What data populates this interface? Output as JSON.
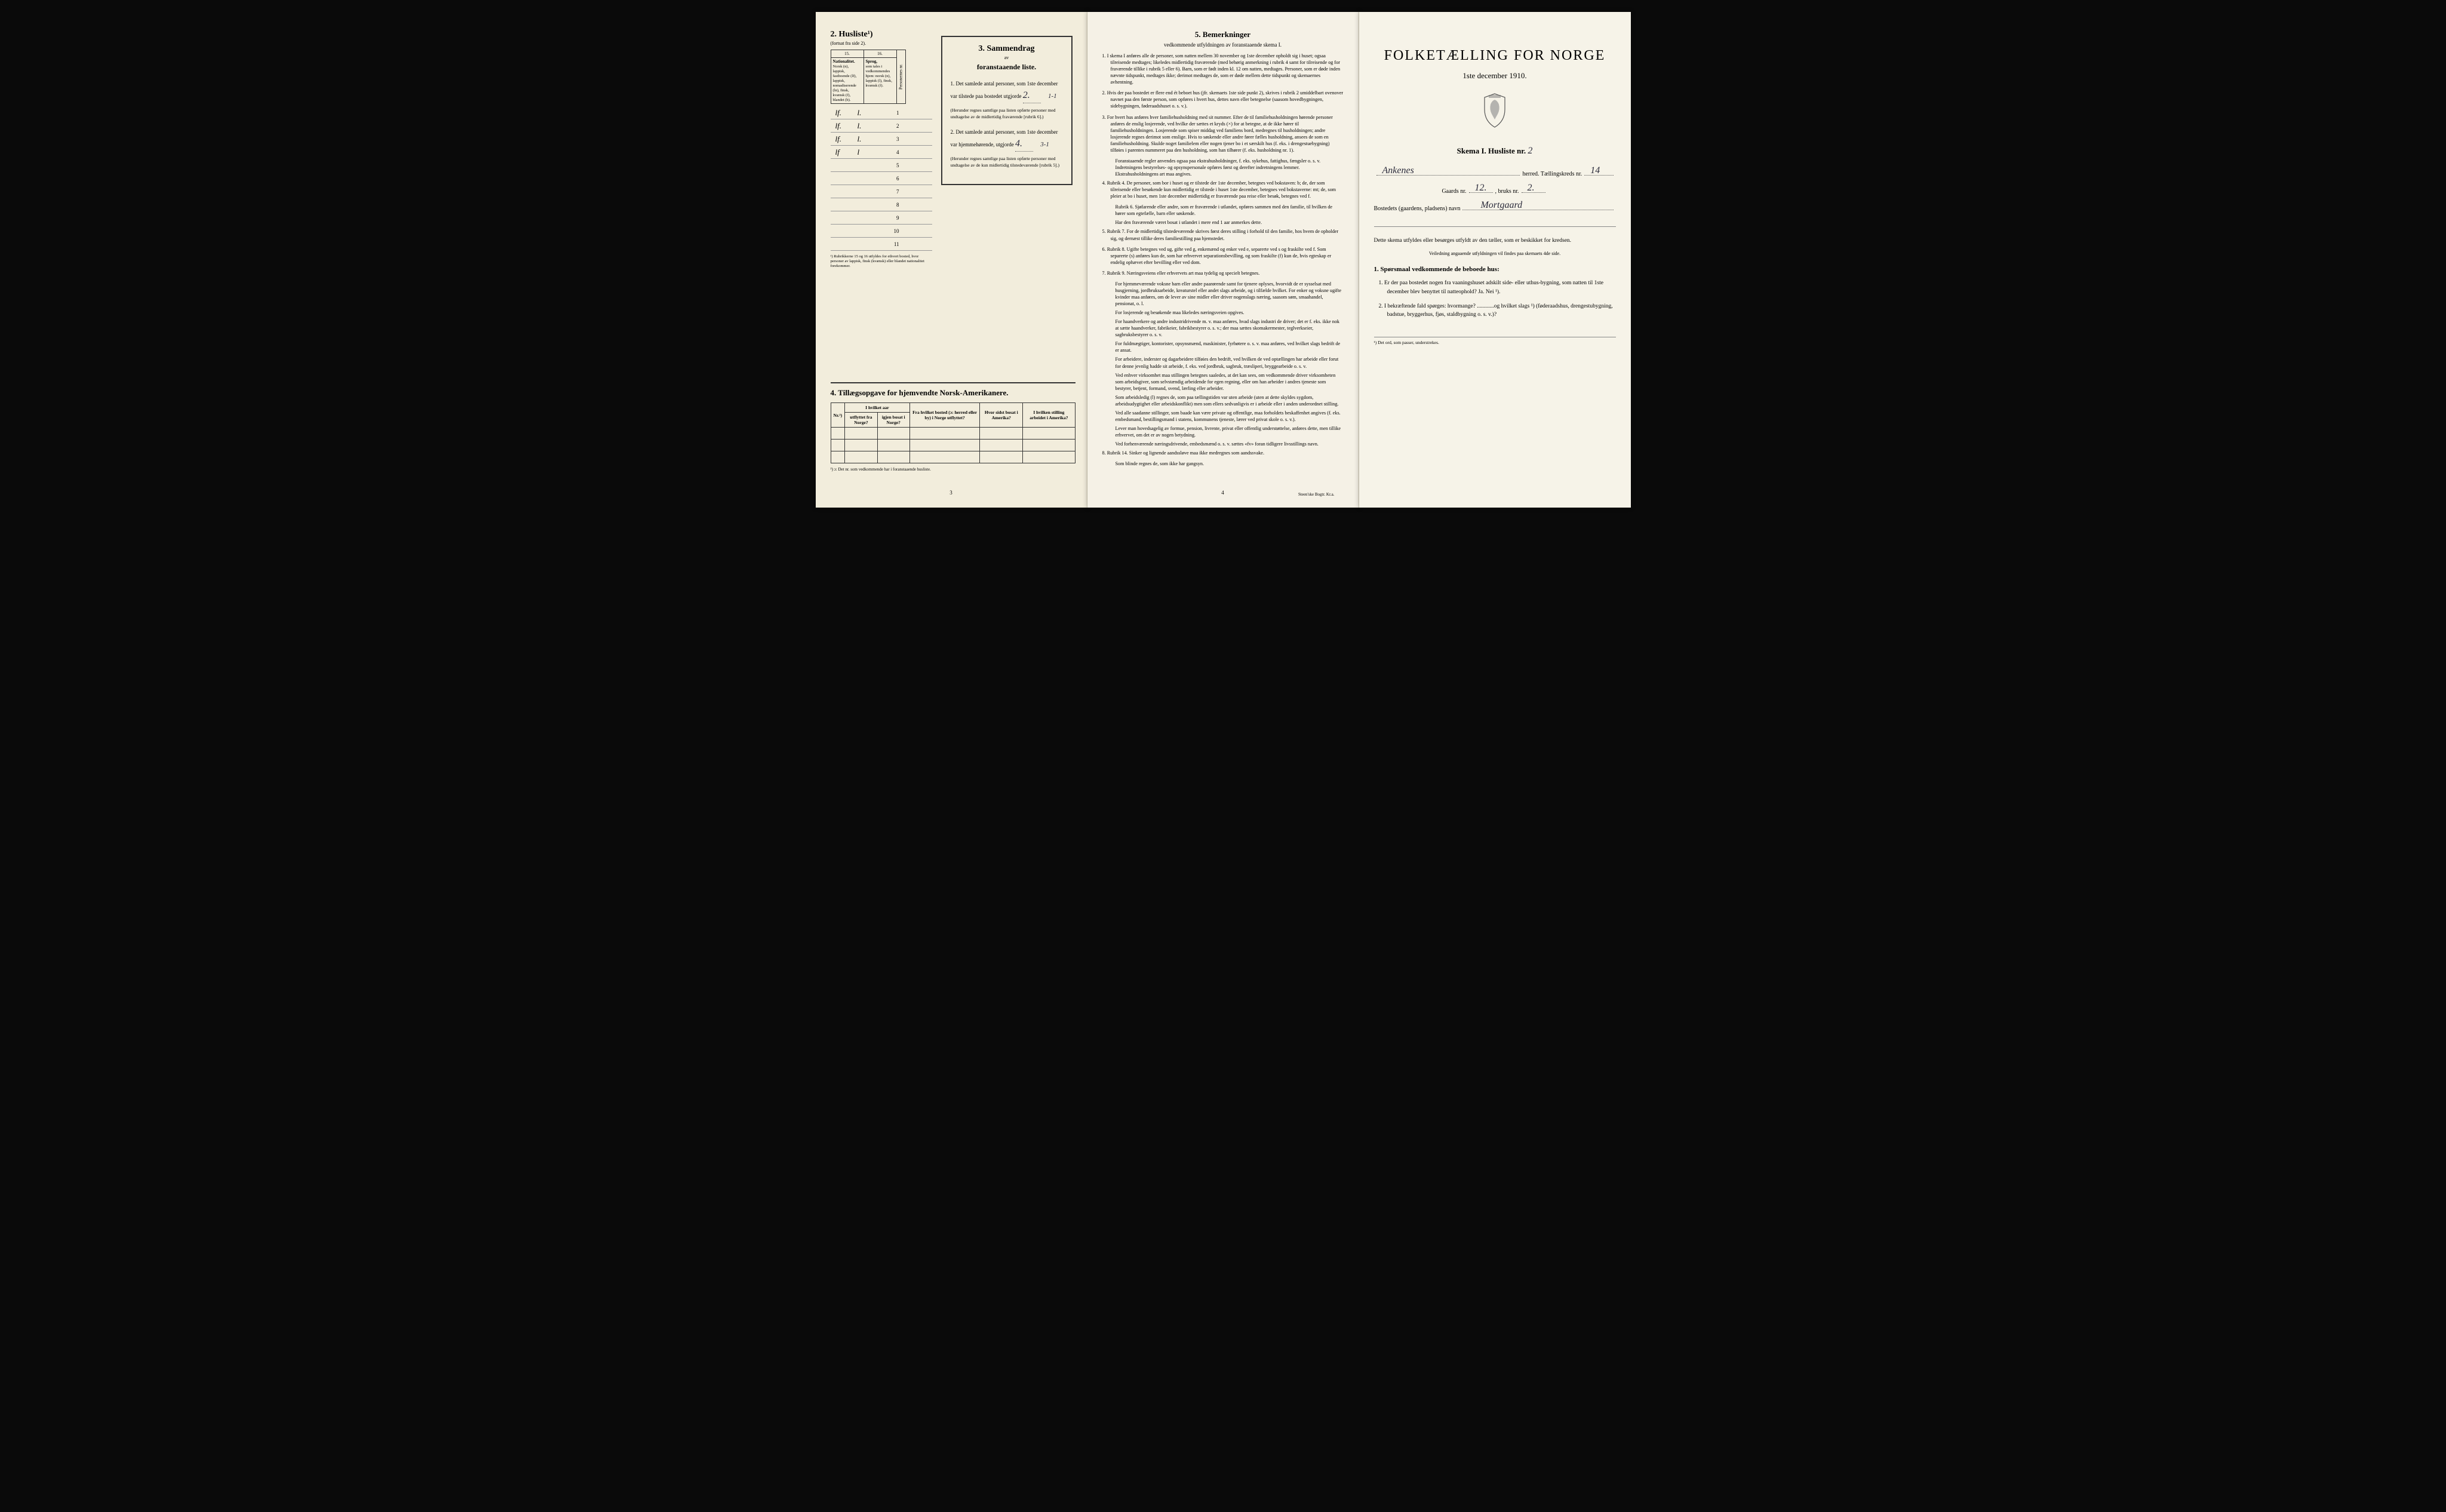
{
  "page1": {
    "husliste_title": "2. Husliste¹)",
    "husliste_sub": "(fortsat fra side 2).",
    "col15": "15.",
    "col16": "16.",
    "header15": "Nationalitet.",
    "header15_body": "Norsk (n), lappisk, fastboende (lf), lappisk, nomadiserende (ln), finsk, kvænsk (f), blandet (b).",
    "header16": "Sprog,",
    "header16_body": "som tales i vedkommendes hjem: norsk (n), lappisk (l), finsk, kvænsk (f).",
    "header_num": "Personernes nr.",
    "rows": [
      {
        "c1": "lf.",
        "c2": "l.",
        "n": "1"
      },
      {
        "c1": "lf.",
        "c2": "l.",
        "n": "2"
      },
      {
        "c1": "lf.",
        "c2": "l.",
        "n": "3"
      },
      {
        "c1": "lf",
        "c2": "l",
        "n": "4"
      },
      {
        "c1": "",
        "c2": "",
        "n": "5"
      },
      {
        "c1": "",
        "c2": "",
        "n": "6"
      },
      {
        "c1": "",
        "c2": "",
        "n": "7"
      },
      {
        "c1": "",
        "c2": "",
        "n": "8"
      },
      {
        "c1": "",
        "c2": "",
        "n": "9"
      },
      {
        "c1": "",
        "c2": "",
        "n": "10"
      },
      {
        "c1": "",
        "c2": "",
        "n": "11"
      }
    ],
    "table_note": "¹) Rubrikkerne 15 og 16 utfyldes for ethvert bosted, hvor personer av lappisk, finsk (kvænsk) eller blandet nationalitet forekommer.",
    "sammendrag": {
      "title": "3. Sammendrag",
      "sub1": "av",
      "sub2": "foranstaaende liste.",
      "item1_a": "1. Det samlede antal personer, som 1ste december",
      "item1_b": "var tilstede paa bostedet utgjorde",
      "item1_val": "2.",
      "item1_side": "1-1",
      "item1_note": "(Herunder regnes samtlige paa listen opførte personer med undtagelse av de midlertidig fraværende [rubrik 6].)",
      "item2_a": "2. Det samlede antal personer, som 1ste december",
      "item2_b": "var hjemmehørende, utgjorde",
      "item2_val": "4.",
      "item2_side": "3-1",
      "item2_note": "(Herunder regnes samtlige paa listen opførte personer med undtagelse av de kun midlertidig tilstedeværende [rubrik 5].)"
    },
    "section4": {
      "title": "4. Tillægsopgave for hjemvendte Norsk-Amerikanere.",
      "headers": [
        "Nr.²)",
        "I hvilket aar",
        "utflyttet fra Norge?",
        "igjen bosat i Norge?",
        "Fra hvilket bosted (ɔ: herred eller by) i Norge utflyttet?",
        "Hvor sidst bosat i Amerika?",
        "I hvilken stilling arbeidet i Amerika?"
      ],
      "footnote": "²) ɔ: Det nr. som vedkommende har i foranstaaende husliste."
    },
    "page_num": "3"
  },
  "page2": {
    "title": "5. Bemerkninger",
    "subtitle": "vedkommende utfyldningen av foranstaaende skema I.",
    "items": [
      "1. I skema I anføres alle de personer, som natten mellem 30 november og 1ste december opholdt sig i huset; ogsaa tilreisende medtages; likeledes midlertidig fraværende (med behørig anmerkning i rubrik 4 samt for tilreisende og for fraværende tillike i rubrik 5 eller 6). Barn, som er født inden kl. 12 om natten, medtages. Personer, som er døde inden nævnte tidspunkt, medtages ikke; derimot medtages de, som er døde mellem dette tidspunkt og skemaernes avhentning.",
      "2. Hvis der paa bostedet er flere end ét beboet hus (jfr. skemaets 1ste side punkt 2), skrives i rubrik 2 umiddelbart ovenover navnet paa den første person, som opføres i hvert hus, dettes navn eller betegnelse (saasom hovedbygningen, sidebygningen, føderaadshuset o. s. v.).",
      "3. For hvert hus anføres hver familiehusholdning med sit nummer. Efter de til familiehusholdningen hørende personer anføres de enslig losjerende, ved hvilke der sættes et kryds (×) for at betegne, at de ikke hører til familiehusholdningen. Losjerende som spiser middag ved familiens bord, medregnes til husholdningen; andre losjerende regnes derimot som enslige. Hvis to søskende eller andre fører fælles husholdning, ansees de som en familiehusholdning. Skulde noget familielem eller nogen tjener bo i et særskilt hus (f. eks. i drengestuebygning) tilføies i parentes nummeret paa den husholdning, som han tilhører (f. eks. husholdning nr. 1)."
    ],
    "item3_sub": "Foranstaaende regler anvendes ogsaa paa ekstrahusholdninger, f. eks. sykehus, fattighus, fængsler o. s. v. Indretningens bestyrelses- og opsynspersonale opføres først og derefter indretningens lemmer. Ekstrahusholdningens art maa angives.",
    "rubrik4": "4. Rubrik 4. De personer, som bor i huset og er tilstede der 1ste december, betegnes ved bokstaven: b; de, der som tilreisende eller besøkende kun midlertidig er tilstede i huset 1ste december, betegnes ved bokstaverne: mt; de, som pleier at bo i huset, men 1ste december midlertidig er fraværende paa reise eller besøk, betegnes ved f.",
    "rubrik6": "Rubrik 6. Sjøfarende eller andre, som er fraværende i utlandet, opføres sammen med den familie, til hvilken de hører som egtefælle, barn eller søskende.",
    "rubrik6_sub": "Har den fraværende været bosat i utlandet i mere end 1 aar anmerkes dette.",
    "rubrik7": "5. Rubrik 7. For de midlertidig tilstedeværende skrives først deres stilling i forhold til den familie, hos hvem de opholder sig, og dernæst tillike deres familiestilling paa hjemstedet.",
    "rubrik8": "6. Rubrik 8. Ugifte betegnes ved ug, gifte ved g, enkemænd og enker ved e, separerte ved s og fraskilte ved f. Som separerte (s) anføres kun de, som har erhvervet separationsbevilling, og som fraskilte (f) kun de, hvis egteskap er endelig ophævet efter bevilling eller ved dom.",
    "rubrik9": "7. Rubrik 9. Næringsveiens eller erhvervets art maa tydelig og specielt betegnes.",
    "rubrik9_subs": [
      "For hjemmeværende voksne barn eller andre paarørende samt for tjenere oplyses, hvorvidt de er sysselsat med husgjerning, jordbruksarbeide, kreaturstel eller andet slags arbeide, og i tilfælde hvilket. For enker og voksne ugifte kvinder maa anføres, om de lever av sine midler eller driver nogenslags næring, saasom søm, smaahandel, pensionat, o. l.",
      "For losjerende og besøkende maa likeledes næringsveien opgives.",
      "For haandverkere og andre industridrivende m. v. maa anføres, hvad slags industri de driver; det er f. eks. ikke nok at sætte haandverker, fabrikeier, fabrikbestyrer o. s. v.; der maa sættes skomakermester, teglverkseier, sagbruksbestyrer o. s. v.",
      "For fuldmægtiger, kontorister, opsynsmænd, maskinister, fyrbøtere o. s. v. maa anføres, ved hvilket slags bedrift de er ansat.",
      "For arbeidere, inderster og dagarbeidere tilføies den bedrift, ved hvilken de ved optællingen har arbeide eller forut for denne jevnlig hadde sit arbeide, f. eks. ved jordbruk, sagbruk, træsliperi, bryggearbeide o. s. v.",
      "Ved enhver virksomhet maa stillingen betegnes saaledes, at det kan sees, om vedkommende driver virksomheten som arbeidsgiver, som selvstændig arbeidende for egen regning, eller om han arbeider i andres tjeneste som bestyrer, betjent, formand, svend, lærling eller arbeider.",
      "Som arbeidsledig (l) regnes de, som paa tællingstiden var uten arbeide (uten at dette skyldes sygdom, arbeidsudygtighet eller arbeidskonflikt) men som ellers sedvanligvis er i arbeide eller i anden underordnet stilling.",
      "Ved alle saadanne stillinger, som baade kan være private og offentlige, maa forholdets beskaffenhet angives (f. eks. embedsmand, bestillingsmand i statens, kommunens tjeneste, lærer ved privat skole o. s. v.).",
      "Lever man hovedsagelig av formue, pension, livrente, privat eller offentlig understøttelse, anføres dette, men tillike erhvervet, om det er av nogen betydning.",
      "Ved forhenværende næringsdrivende, embedsmænd o. s. v. sættes «fv» foran tidligere livsstillings navn."
    ],
    "rubrik14": "8. Rubrik 14. Sinker og lignende aandssløve maa ikke medregnes som aandssvake.",
    "rubrik14_sub": "Som blinde regnes de, som ikke har gangsyn.",
    "page_num": "4",
    "printer": "Steen'ske Bogtr. Kr.a."
  },
  "page3": {
    "title": "FOLKETÆLLING FOR NORGE",
    "date": "1ste december 1910.",
    "skema": "Skema I.  Husliste nr.",
    "husliste_nr": "2",
    "herred_hw": "Ankenes",
    "herred_label": "herred.  Tællingskreds nr.",
    "kreds_nr": "14",
    "gaards_label": "Gaards nr.",
    "gaards_nr": "12.",
    "bruks_label": ", bruks nr.",
    "bruks_nr": "2.",
    "bosted_label": "Bostedets (gaardens, pladsens) navn",
    "bosted_hw": "Mortgaard",
    "instr1": "Dette skema utfyldes eller besørges utfyldt av den tæller, som er beskikket for kredsen.",
    "instr2": "Veiledning angaaende utfyldningen vil findes paa skemaets 4de side.",
    "q_header": "1. Spørsmaal vedkommende de beboede hus:",
    "q1": "1. Er der paa bostedet nogen fra vaaningshuset adskilt side- eller uthus-bygning, som natten til 1ste december blev benyttet til natteophold?  Ja.  Nei ¹).",
    "q2": "2. I bekræftende fald spørges: hvormange? ............og hvilket slags ¹) (føderaadshus, drengestubygning, badstue, bryggerhus, fjøs, staldbygning o. s. v.)?",
    "bottom_note": "¹) Det ord, som passer, understrekes."
  }
}
